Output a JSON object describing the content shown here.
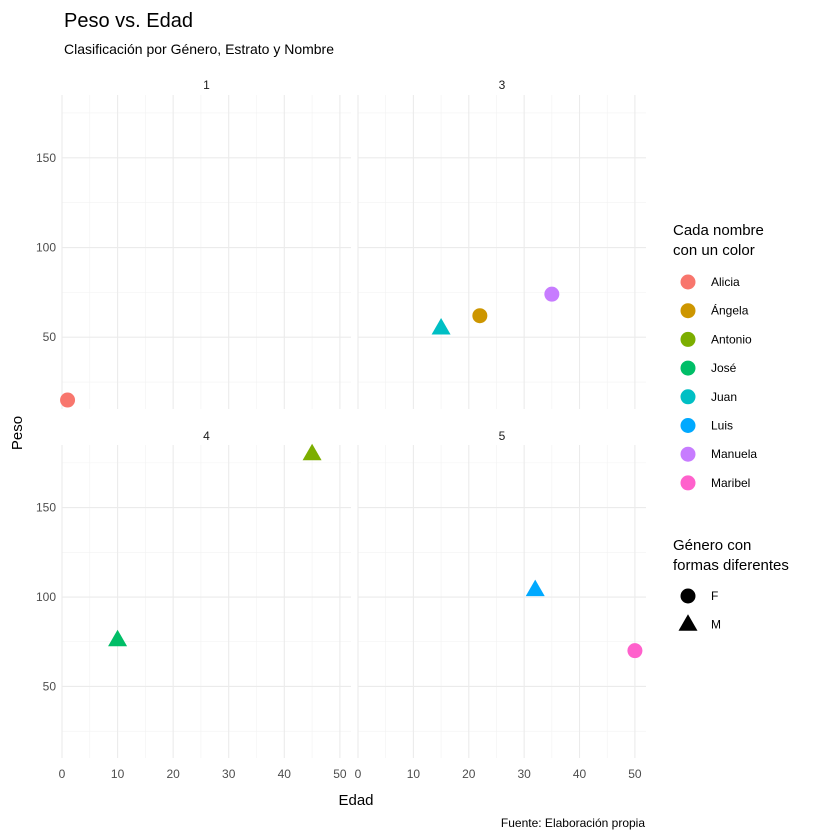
{
  "chart_data": {
    "type": "scatter",
    "title": "Peso vs. Edad",
    "subtitle": "Clasificación por Género, Estrato y Nombre",
    "xlabel": "Edad",
    "ylabel": "Peso",
    "caption": "Fuente: Elaboración propia",
    "xlim": [
      0,
      52
    ],
    "ylim": [
      10,
      185
    ],
    "x_ticks": [
      0,
      10,
      20,
      30,
      40,
      50
    ],
    "y_ticks": [
      50,
      100,
      150
    ],
    "grid": true,
    "legend_position": "right",
    "facets": [
      {
        "label": "1",
        "points": [
          {
            "name": "Alicia",
            "gender": "F",
            "x": 1,
            "y": 15
          }
        ]
      },
      {
        "label": "3",
        "points": [
          {
            "name": "Juan",
            "gender": "M",
            "x": 15,
            "y": 55
          },
          {
            "name": "Ángela",
            "gender": "F",
            "x": 22,
            "y": 62
          },
          {
            "name": "Manuela",
            "gender": "F",
            "x": 35,
            "y": 74
          }
        ]
      },
      {
        "label": "4",
        "points": [
          {
            "name": "Antonio",
            "gender": "M",
            "x": 45,
            "y": 180
          },
          {
            "name": "José",
            "gender": "M",
            "x": 10,
            "y": 76
          }
        ]
      },
      {
        "label": "5",
        "points": [
          {
            "name": "Luis",
            "gender": "M",
            "x": 32,
            "y": 104
          },
          {
            "name": "Maribel",
            "gender": "F",
            "x": 50,
            "y": 70
          }
        ]
      }
    ],
    "color_legend": {
      "title_lines": [
        "Cada nombre",
        " con un color"
      ],
      "entries": [
        {
          "name": "Alicia",
          "color": "#F8766D"
        },
        {
          "name": "Ángela",
          "color": "#CD9600"
        },
        {
          "name": "Antonio",
          "color": "#7CAE00"
        },
        {
          "name": "José",
          "color": "#00BE67"
        },
        {
          "name": "Juan",
          "color": "#00BFC4"
        },
        {
          "name": "Luis",
          "color": "#00A9FF"
        },
        {
          "name": "Manuela",
          "color": "#C77CFF"
        },
        {
          "name": "Maribel",
          "color": "#FF61CC"
        }
      ]
    },
    "shape_legend": {
      "title_lines": [
        "Género con",
        " formas diferentes"
      ],
      "entries": [
        {
          "label": "F",
          "shape": "circle"
        },
        {
          "label": "M",
          "shape": "triangle"
        }
      ]
    }
  }
}
